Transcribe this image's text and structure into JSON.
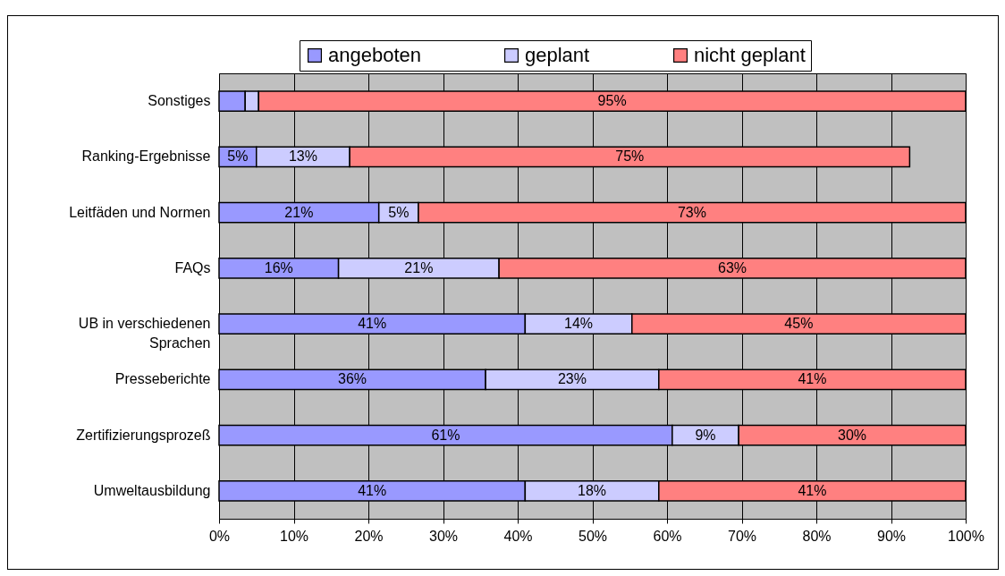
{
  "chart_data": {
    "type": "bar",
    "orientation": "horizontal",
    "stacked": true,
    "categories": [
      "Sonstiges",
      "Ranking-Ergebnisse",
      "Leitfäden und Normen",
      "FAQs",
      "UB in verschiedenen Sprachen",
      "Presseberichte",
      "Zertifizierungsprozeß",
      "Umweltausbildung"
    ],
    "series": [
      {
        "name": "angeboten",
        "color": "#9999ff",
        "values": [
          3.5,
          5,
          21.4,
          16,
          41,
          35.7,
          60.7,
          41
        ],
        "value_labels": [
          null,
          "5%",
          "21%",
          "16%",
          "41%",
          "36%",
          "61%",
          "41%"
        ]
      },
      {
        "name": "geplant",
        "color": "#ccccff",
        "values": [
          1.8,
          12.5,
          5.3,
          21.5,
          14.3,
          23.2,
          8.9,
          17.9
        ],
        "value_labels": [
          null,
          "13%",
          "5%",
          "21%",
          "14%",
          "23%",
          "9%",
          "18%"
        ]
      },
      {
        "name": "nicht geplant",
        "color": "#ff8080",
        "values": [
          94.7,
          75,
          73.3,
          62.5,
          44.7,
          41.1,
          30.4,
          41.1
        ],
        "value_labels": [
          "95%",
          "75%",
          "73%",
          "63%",
          "45%",
          "41%",
          "30%",
          "41%"
        ]
      }
    ],
    "xlim": [
      0,
      100
    ],
    "xticks": [
      {
        "value": 0,
        "label": "0%"
      },
      {
        "value": 10,
        "label": "10%"
      },
      {
        "value": 20,
        "label": "20%"
      },
      {
        "value": 30,
        "label": "30%"
      },
      {
        "value": 40,
        "label": "40%"
      },
      {
        "value": 50,
        "label": "50%"
      },
      {
        "value": 60,
        "label": "60%"
      },
      {
        "value": 70,
        "label": "70%"
      },
      {
        "value": 80,
        "label": "80%"
      },
      {
        "value": 90,
        "label": "90%"
      },
      {
        "value": 100,
        "label": "100%"
      }
    ],
    "grid": "x",
    "legend": "top"
  }
}
